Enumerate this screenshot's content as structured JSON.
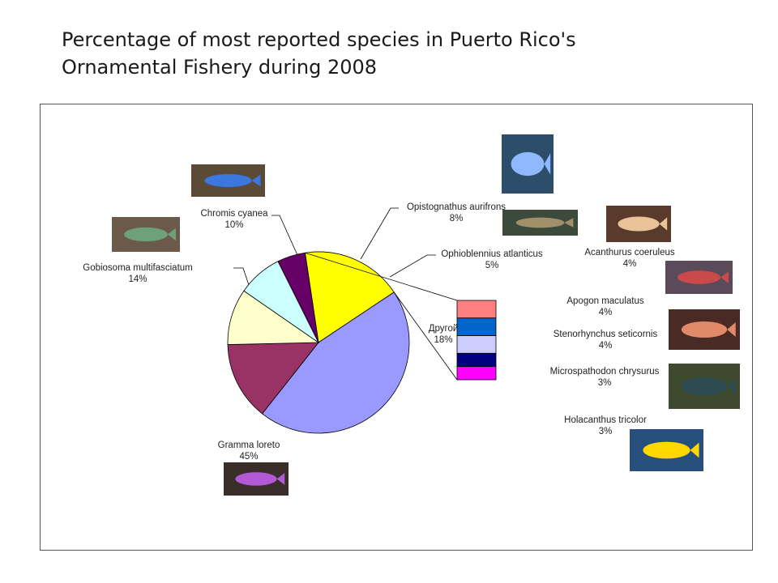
{
  "title_line1": "Percentage of most reported species in Puerto Rico's",
  "title_line2": "Ornamental Fishery during 2008",
  "chart_data": {
    "type": "pie",
    "title": "Percentage of most reported species in Puerto Rico's Ornamental Fishery during 2008",
    "slices": [
      {
        "name": "Gramma loreto",
        "value": 45,
        "label": "45%",
        "color": "#9999ff"
      },
      {
        "name": "Gobiosoma multifasciatum",
        "value": 14,
        "label": "14%",
        "color": "#993366"
      },
      {
        "name": "Chromis cyanea",
        "value": 10,
        "label": "10%",
        "color": "#ffffcc"
      },
      {
        "name": "Opistognathus aurifrons",
        "value": 8,
        "label": "8%",
        "color": "#ccffff"
      },
      {
        "name": "Ophioblennius atlanticus",
        "value": 5,
        "label": "5%",
        "color": "#660066"
      },
      {
        "name": "Другой",
        "value": 18,
        "label": "18%",
        "color": "#ffff00"
      }
    ],
    "other_breakdown": [
      {
        "name": "Acanthurus coeruleus",
        "value": 4,
        "label": "4%",
        "color": "#ff8080"
      },
      {
        "name": "Apogon maculatus",
        "value": 4,
        "label": "4%",
        "color": "#0066cc"
      },
      {
        "name": "Stenorhynchus seticornis",
        "value": 4,
        "label": "4%",
        "color": "#ccccff"
      },
      {
        "name": "Microspathodon chrysurus",
        "value": 3,
        "label": "3%",
        "color": "#000080"
      },
      {
        "name": "Holacanthus tricolor",
        "value": 3,
        "label": "3%",
        "color": "#ff00ff"
      }
    ]
  }
}
